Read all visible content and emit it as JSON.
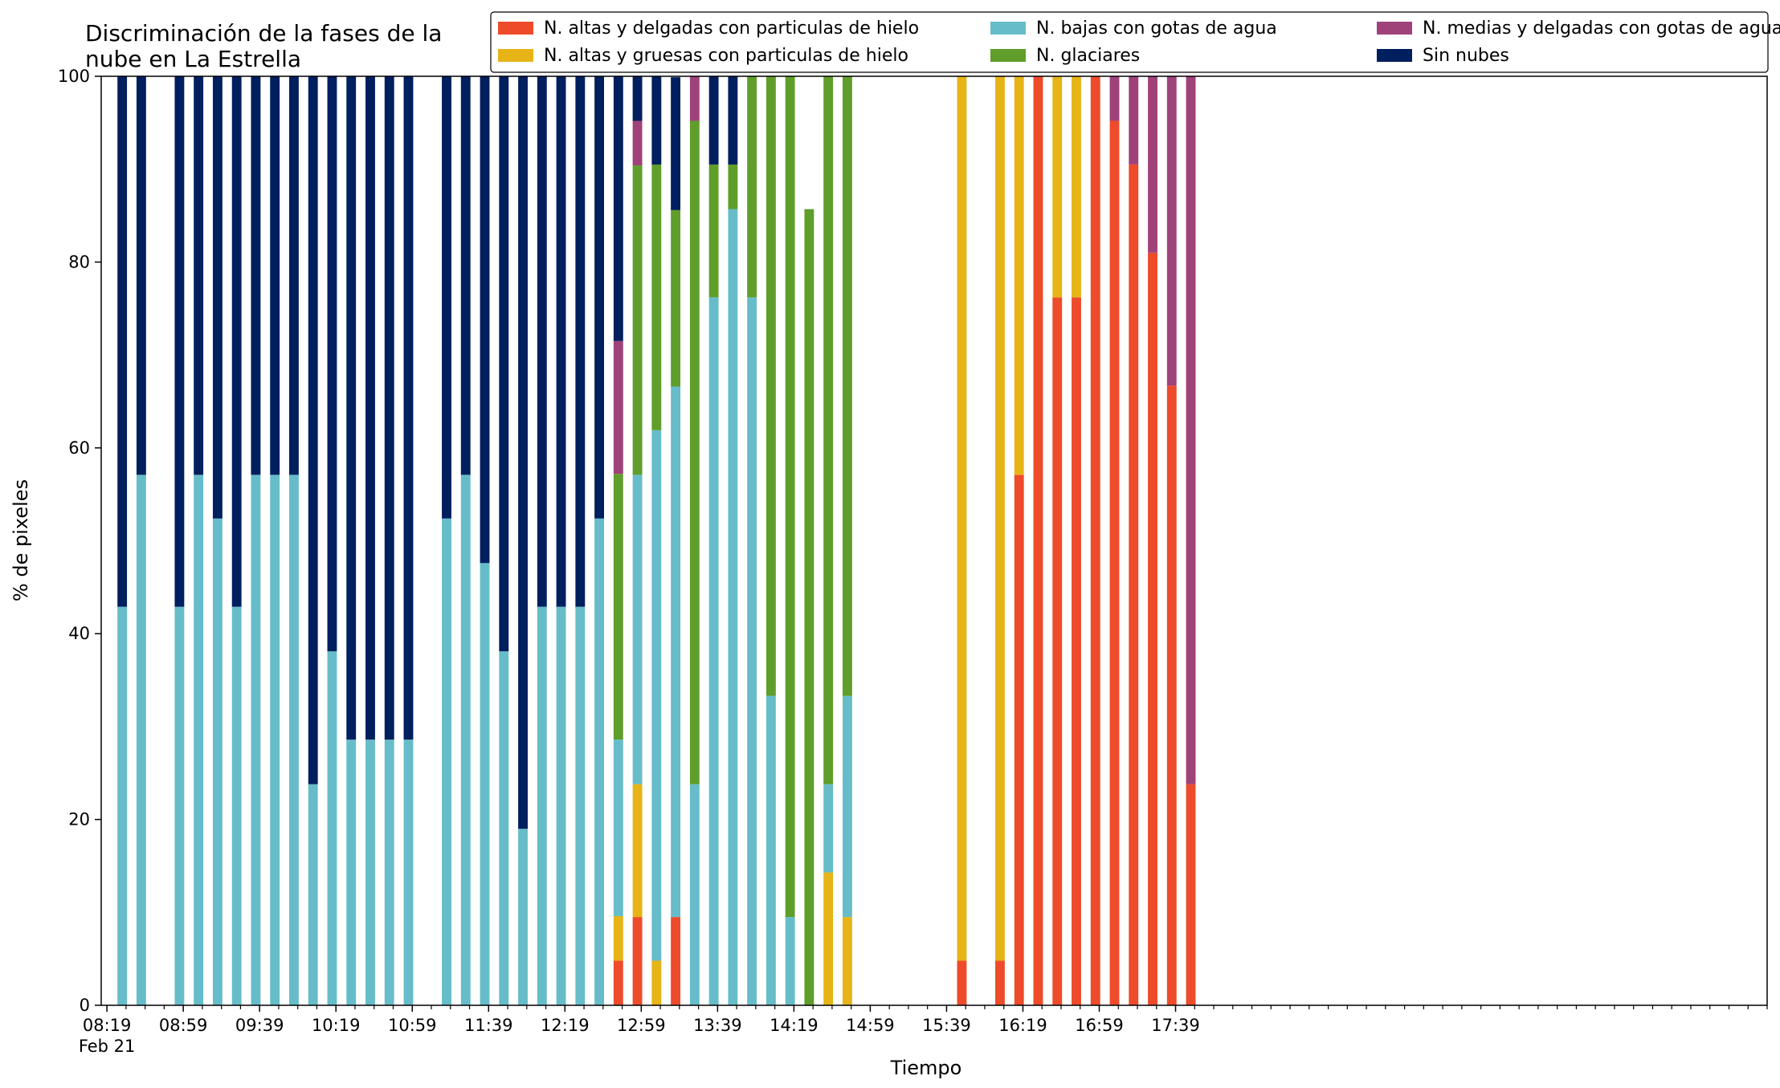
{
  "chart_data": {
    "type": "bar",
    "stacked": true,
    "title": "Discriminación de la fases de la nube en La Estrella",
    "title_lines": [
      "Discriminación de la fases de la",
      "nube en La Estrella"
    ],
    "xlabel": "Tiempo",
    "ylabel": "% de pixeles",
    "ylim": [
      0,
      100
    ],
    "yticks": [
      0,
      20,
      40,
      60,
      80,
      100
    ],
    "x_unit": "minutes after 08:19",
    "xlim": [
      -3,
      870
    ],
    "xticks": [
      {
        "x": 0,
        "label": "08:19",
        "sublabel": "Feb 21"
      },
      {
        "x": 40,
        "label": "08:59"
      },
      {
        "x": 80,
        "label": "09:39"
      },
      {
        "x": 120,
        "label": "10:19"
      },
      {
        "x": 160,
        "label": "10:59"
      },
      {
        "x": 200,
        "label": "11:39"
      },
      {
        "x": 240,
        "label": "12:19"
      },
      {
        "x": 280,
        "label": "12:59"
      },
      {
        "x": 320,
        "label": "13:39"
      },
      {
        "x": 360,
        "label": "14:19"
      },
      {
        "x": 400,
        "label": "14:59"
      },
      {
        "x": 440,
        "label": "15:39"
      },
      {
        "x": 480,
        "label": "16:19"
      },
      {
        "x": 520,
        "label": "16:59"
      },
      {
        "x": 560,
        "label": "17:39"
      }
    ],
    "minor_tick_step": 10,
    "grid": false,
    "legend_position": "top-right",
    "bar_width": 5,
    "times": [
      "08:27",
      "08:37",
      "08:57",
      "09:07",
      "09:17",
      "09:27",
      "09:37",
      "09:47",
      "09:57",
      "10:07",
      "10:17",
      "10:27",
      "10:37",
      "10:47",
      "10:57",
      "11:17",
      "11:27",
      "11:37",
      "11:47",
      "11:57",
      "12:07",
      "12:17",
      "12:27",
      "12:37",
      "12:47",
      "12:57",
      "13:07",
      "13:17",
      "13:27",
      "13:37",
      "13:47",
      "13:57",
      "14:07",
      "14:17",
      "14:27",
      "14:37",
      "14:47",
      "15:47",
      "16:07",
      "16:17",
      "16:27",
      "16:37",
      "16:47",
      "16:57",
      "17:07",
      "17:17",
      "17:27",
      "17:37",
      "17:47"
    ],
    "x": [
      8,
      18,
      38,
      48,
      58,
      68,
      78,
      88,
      98,
      108,
      118,
      128,
      138,
      148,
      158,
      178,
      188,
      198,
      208,
      218,
      228,
      238,
      248,
      258,
      268,
      278,
      288,
      298,
      308,
      318,
      328,
      338,
      348,
      358,
      368,
      378,
      388,
      448,
      468,
      478,
      488,
      498,
      508,
      518,
      528,
      538,
      548,
      558,
      568
    ],
    "series": [
      {
        "name": "N. altas y delgadas con particulas de hielo",
        "color": "#ee4b2b",
        "values": [
          0,
          0,
          0,
          0,
          0,
          0,
          0,
          0,
          0,
          0,
          0,
          0,
          0,
          0,
          0,
          0,
          0,
          0,
          0,
          0,
          0,
          0,
          0,
          0,
          4.8,
          9.5,
          0,
          9.5,
          0,
          0,
          0,
          0,
          0,
          0,
          0,
          0,
          0,
          4.8,
          4.8,
          57.1,
          100,
          76.2,
          76.2,
          100,
          95.2,
          90.5,
          81,
          66.7,
          23.8
        ]
      },
      {
        "name": "N. altas y gruesas con particulas de hielo",
        "color": "#e6b417",
        "values": [
          0,
          0,
          0,
          0,
          0,
          0,
          0,
          0,
          0,
          0,
          0,
          0,
          0,
          0,
          0,
          0,
          0,
          0,
          0,
          0,
          0,
          0,
          0,
          0,
          4.8,
          14.3,
          4.8,
          0,
          0,
          0,
          0,
          0,
          0,
          0,
          0,
          14.3,
          9.5,
          95.2,
          95.2,
          42.9,
          0,
          23.8,
          23.8,
          0,
          0,
          0,
          0,
          0,
          0
        ]
      },
      {
        "name": "N. bajas con gotas de agua",
        "color": "#66bdc9",
        "values": [
          42.9,
          57.1,
          42.9,
          57.1,
          52.4,
          42.9,
          57.1,
          57.1,
          57.1,
          23.8,
          38.1,
          28.6,
          28.6,
          28.6,
          28.6,
          52.4,
          57.1,
          47.6,
          38.1,
          19,
          42.9,
          42.9,
          42.9,
          52.4,
          19,
          33.3,
          57.1,
          57.1,
          23.8,
          76.2,
          85.7,
          76.2,
          33.3,
          9.5,
          0,
          9.5,
          23.8,
          0,
          0,
          0,
          0,
          0,
          0,
          0,
          0,
          0,
          0,
          0,
          0
        ]
      },
      {
        "name": "N. glaciares",
        "color": "#5f9e2b",
        "values": [
          0,
          0,
          0,
          0,
          0,
          0,
          0,
          0,
          0,
          0,
          0,
          0,
          0,
          0,
          0,
          0,
          0,
          0,
          0,
          0,
          0,
          0,
          0,
          0,
          28.6,
          33.3,
          28.6,
          19,
          71.4,
          14.3,
          4.8,
          23.8,
          66.7,
          90.5,
          85.7,
          81,
          71.4,
          0,
          0,
          0,
          0,
          0,
          0,
          0,
          0,
          0,
          0,
          0,
          0
        ]
      },
      {
        "name": "N. medias y delgadas con gotas de agua",
        "color": "#a0427a",
        "values": [
          0,
          0,
          0,
          0,
          0,
          0,
          0,
          0,
          0,
          0,
          0,
          0,
          0,
          0,
          0,
          0,
          0,
          0,
          0,
          0,
          0,
          0,
          0,
          0,
          14.3,
          4.8,
          0,
          0,
          4.8,
          0,
          0,
          0,
          0,
          0,
          0,
          0,
          0,
          0,
          0,
          0,
          0,
          0,
          0,
          0,
          4.8,
          9.5,
          19,
          33.3,
          76.2
        ]
      },
      {
        "name": "Sin nubes",
        "color": "#001f5f",
        "values": [
          57.1,
          42.9,
          57.1,
          42.9,
          47.6,
          57.1,
          42.9,
          42.9,
          42.9,
          76.2,
          61.9,
          71.4,
          71.4,
          71.4,
          71.4,
          47.6,
          42.9,
          52.4,
          61.9,
          81,
          57.1,
          57.1,
          57.1,
          47.6,
          28.6,
          4.8,
          9.5,
          14.3,
          0,
          9.5,
          9.5,
          0,
          0,
          0,
          0,
          0,
          0,
          0,
          0,
          0,
          0,
          0,
          0,
          0,
          0,
          0,
          0,
          0,
          0
        ]
      }
    ]
  }
}
